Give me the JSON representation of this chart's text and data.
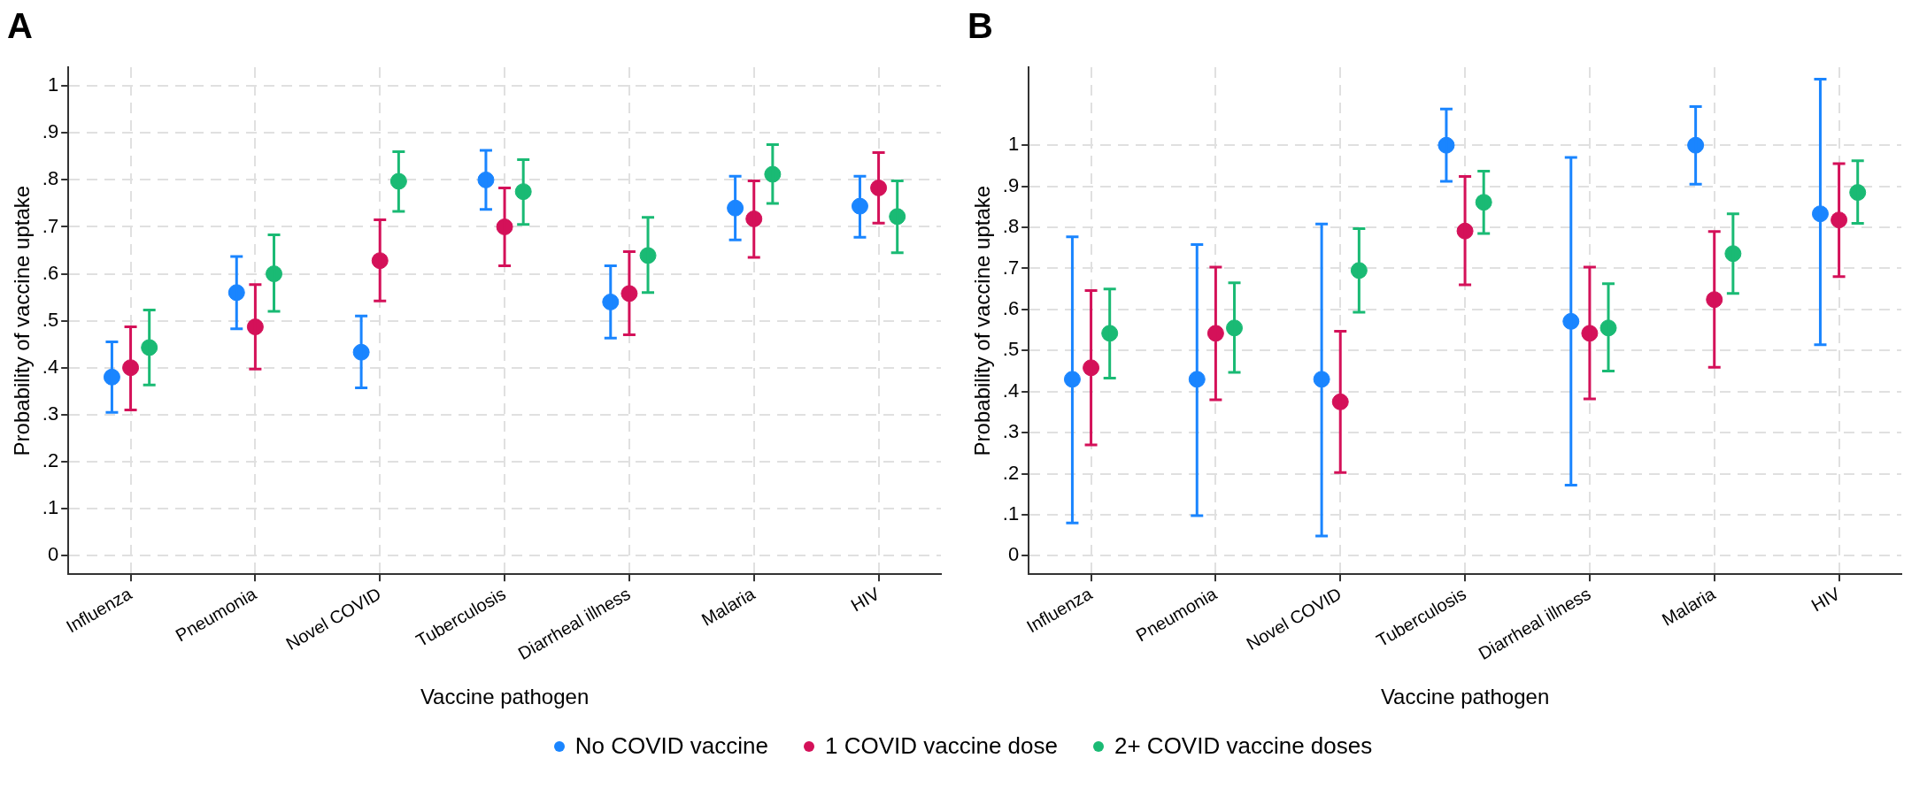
{
  "chart_data": [
    {
      "type": "scatter",
      "title": "A",
      "xlabel": "Vaccine pathogen",
      "ylabel": "Probability of vaccine uptake",
      "categories": [
        "Influenza",
        "Pneumonia",
        "Novel COVID",
        "Tuberculosis",
        "Diarrheal illness",
        "Malaria",
        "HIV"
      ],
      "ylim": [
        -0.04,
        1.04
      ],
      "yticks": [
        {
          "value": 0,
          "label": "0"
        },
        {
          "value": 0.1,
          "label": ".1"
        },
        {
          "value": 0.2,
          "label": ".2"
        },
        {
          "value": 0.3,
          "label": ".3"
        },
        {
          "value": 0.4,
          "label": ".4"
        },
        {
          "value": 0.5,
          "label": ".5"
        },
        {
          "value": 0.6,
          "label": ".6"
        },
        {
          "value": 0.7,
          "label": ".7"
        },
        {
          "value": 0.8,
          "label": ".8"
        },
        {
          "value": 0.9,
          "label": ".9"
        },
        {
          "value": 1,
          "label": "1"
        }
      ],
      "grid": true,
      "marker": "circle",
      "legend": "bottom",
      "series": [
        {
          "name": "No COVID vaccine",
          "color": "#1a85ff",
          "values": [
            0.38,
            0.56,
            0.433,
            0.8,
            0.54,
            0.74,
            0.744
          ],
          "errors": [
            [
              0.305,
              0.455
            ],
            [
              0.483,
              0.637
            ],
            [
              0.357,
              0.51
            ],
            [
              0.737,
              0.863
            ],
            [
              0.463,
              0.617
            ],
            [
              0.672,
              0.808
            ],
            [
              0.678,
              0.808
            ]
          ]
        },
        {
          "name": "1 COVID vaccine dose",
          "color": "#d41159",
          "values": [
            0.4,
            0.487,
            0.628,
            0.7,
            0.558,
            0.717,
            0.783
          ],
          "errors": [
            [
              0.31,
              0.487
            ],
            [
              0.397,
              0.577
            ],
            [
              0.542,
              0.715
            ],
            [
              0.617,
              0.783
            ],
            [
              0.47,
              0.647
            ],
            [
              0.635,
              0.798
            ],
            [
              0.708,
              0.858
            ]
          ]
        },
        {
          "name": "2+ COVID vaccine doses",
          "color": "#1aba74",
          "values": [
            0.443,
            0.6,
            0.797,
            0.775,
            0.639,
            0.812,
            0.722
          ],
          "errors": [
            [
              0.363,
              0.523
            ],
            [
              0.52,
              0.683
            ],
            [
              0.733,
              0.86
            ],
            [
              0.705,
              0.843
            ],
            [
              0.56,
              0.72
            ],
            [
              0.75,
              0.875
            ],
            [
              0.645,
              0.798
            ]
          ]
        }
      ]
    },
    {
      "type": "scatter",
      "title": "B",
      "xlabel": "Vaccine pathogen",
      "ylabel": "Probability of vaccine uptake",
      "categories": [
        "Influenza",
        "Pneumonia",
        "Novel COVID",
        "Tuberculosis",
        "Diarrheal illness",
        "Malaria",
        "HIV"
      ],
      "ylim": [
        -0.045,
        1.19
      ],
      "yticks": [
        {
          "value": 0,
          "label": "0"
        },
        {
          "value": 0.1,
          "label": ".1"
        },
        {
          "value": 0.2,
          "label": ".2"
        },
        {
          "value": 0.3,
          "label": ".3"
        },
        {
          "value": 0.4,
          "label": ".4"
        },
        {
          "value": 0.5,
          "label": ".5"
        },
        {
          "value": 0.6,
          "label": ".6"
        },
        {
          "value": 0.7,
          "label": ".7"
        },
        {
          "value": 0.8,
          "label": ".8"
        },
        {
          "value": 0.9,
          "label": ".9"
        },
        {
          "value": 1,
          "label": "1"
        }
      ],
      "grid": true,
      "marker": "circle",
      "series": [
        {
          "color": "#1a85ff",
          "values": [
            0.43,
            0.43,
            0.43,
            1.0,
            0.571,
            1.0,
            0.833
          ],
          "errors": [
            [
              0.08,
              0.777
            ],
            [
              0.098,
              0.758
            ],
            [
              0.048,
              0.808
            ],
            [
              0.912,
              1.088
            ],
            [
              0.172,
              0.97
            ],
            [
              0.905,
              1.094
            ],
            [
              0.514,
              1.161
            ]
          ]
        },
        {
          "color": "#d41159",
          "values": [
            0.458,
            0.542,
            0.375,
            0.791,
            0.542,
            0.624,
            0.818
          ],
          "errors": [
            [
              0.27,
              0.646
            ],
            [
              0.38,
              0.703
            ],
            [
              0.203,
              0.547
            ],
            [
              0.66,
              0.924
            ],
            [
              0.382,
              0.703
            ],
            [
              0.459,
              0.79
            ],
            [
              0.68,
              0.955
            ]
          ]
        },
        {
          "color": "#1aba74",
          "values": [
            0.542,
            0.555,
            0.695,
            0.861,
            0.555,
            0.736,
            0.885
          ],
          "errors": [
            [
              0.433,
              0.65
            ],
            [
              0.447,
              0.665
            ],
            [
              0.593,
              0.797
            ],
            [
              0.785,
              0.937
            ],
            [
              0.45,
              0.663
            ],
            [
              0.639,
              0.833
            ],
            [
              0.81,
              0.962
            ]
          ]
        }
      ]
    }
  ]
}
